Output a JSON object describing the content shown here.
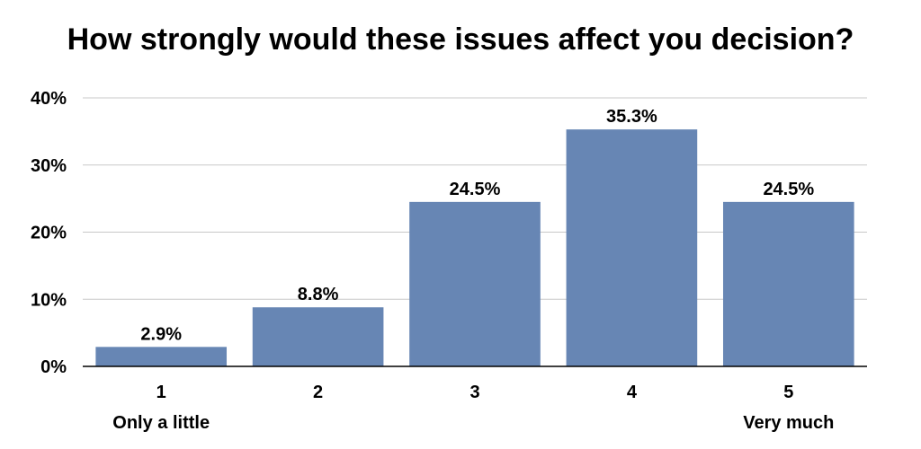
{
  "chart_data": {
    "type": "bar",
    "title": "How strongly would these issues affect you decision?",
    "categories": [
      "1",
      "2",
      "3",
      "4",
      "5"
    ],
    "values": [
      2.9,
      8.8,
      24.5,
      35.3,
      24.5
    ],
    "data_labels": [
      "2.9%",
      "8.8%",
      "24.5%",
      "35.3%",
      "24.5%"
    ],
    "ylim": [
      0,
      40
    ],
    "yticks": [
      0,
      10,
      20,
      30,
      40
    ],
    "ytick_labels": [
      "0%",
      "10%",
      "20%",
      "30%",
      "40%"
    ],
    "grid": true,
    "bar_color": "#6786b4",
    "annotations": {
      "low": "Only a little",
      "high": "Very much"
    }
  }
}
